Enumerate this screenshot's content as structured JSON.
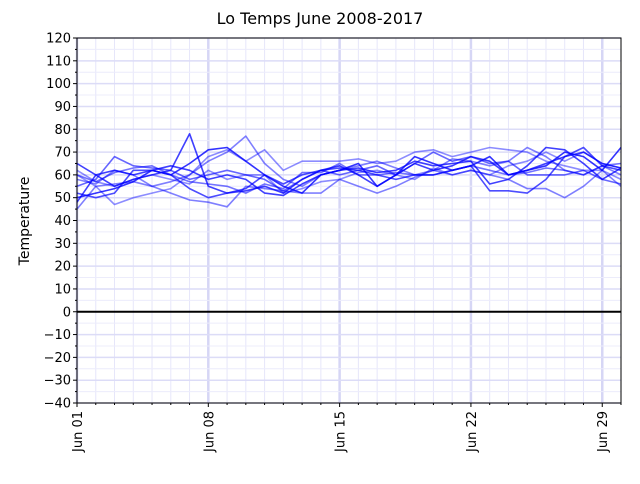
{
  "chart_data": {
    "type": "line",
    "title": "Lo Temps June 2008-2017",
    "xlabel": "",
    "ylabel": "Temperature",
    "x": [
      1,
      2,
      3,
      4,
      5,
      6,
      7,
      8,
      9,
      10,
      11,
      12,
      13,
      14,
      15,
      16,
      17,
      18,
      19,
      20,
      21,
      22,
      23,
      24,
      25,
      26,
      27,
      28,
      29,
      30
    ],
    "xlim": [
      1,
      30
    ],
    "ylim": [
      -40,
      120
    ],
    "xticks": [
      {
        "day": 1,
        "label": "Jun 01"
      },
      {
        "day": 8,
        "label": "Jun 08"
      },
      {
        "day": 15,
        "label": "Jun 15"
      },
      {
        "day": 22,
        "label": "Jun 22"
      },
      {
        "day": 29,
        "label": "Jun 29"
      }
    ],
    "yticks": [
      "-40",
      "-30",
      "-20",
      "-10",
      "0",
      "10",
      "20",
      "30",
      "40",
      "50",
      "60",
      "70",
      "80",
      "90",
      "100",
      "110",
      "120"
    ],
    "grid": true,
    "reference_line": 0,
    "line_color": "#0000ff",
    "series": [
      {
        "opacity": 0.75,
        "values": [
          65,
          60,
          55,
          58,
          60,
          62,
          78,
          55,
          52,
          53,
          55,
          52,
          58,
          62,
          64,
          60,
          55,
          60,
          65,
          62,
          64,
          68,
          66,
          60,
          62,
          65,
          68,
          70,
          65,
          63
        ]
      },
      {
        "opacity": 0.5,
        "values": [
          58,
          56,
          62,
          60,
          55,
          57,
          60,
          66,
          70,
          77,
          65,
          58,
          55,
          60,
          62,
          64,
          66,
          63,
          60,
          62,
          67,
          66,
          64,
          66,
          72,
          68,
          62,
          60,
          64,
          60
        ]
      },
      {
        "opacity": 0.45,
        "values": [
          60,
          55,
          47,
          50,
          52,
          54,
          60,
          68,
          71,
          66,
          71,
          62,
          66,
          66,
          66,
          67,
          65,
          66,
          70,
          71,
          68,
          70,
          72,
          71,
          70,
          66,
          64,
          62,
          62,
          58
        ]
      },
      {
        "opacity": 0.5,
        "values": [
          45,
          55,
          56,
          57,
          55,
          52,
          49,
          48,
          46,
          55,
          54,
          53,
          52,
          52,
          58,
          55,
          52,
          55,
          59,
          62,
          60,
          62,
          60,
          58,
          54,
          54,
          50,
          55,
          62,
          55
        ]
      },
      {
        "opacity": 0.8,
        "values": [
          50,
          52,
          54,
          57,
          62,
          60,
          65,
          71,
          72,
          66,
          60,
          55,
          52,
          60,
          62,
          65,
          55,
          60,
          68,
          65,
          62,
          64,
          68,
          60,
          62,
          64,
          70,
          68,
          62,
          72
        ]
      },
      {
        "opacity": 0.6,
        "values": [
          55,
          58,
          68,
          64,
          63,
          62,
          58,
          60,
          62,
          60,
          58,
          53,
          58,
          62,
          60,
          62,
          64,
          60,
          65,
          70,
          66,
          68,
          65,
          66,
          60,
          60,
          60,
          62,
          58,
          56
        ]
      },
      {
        "opacity": 0.7,
        "values": [
          52,
          50,
          52,
          62,
          62,
          60,
          54,
          50,
          52,
          54,
          60,
          56,
          60,
          62,
          63,
          62,
          60,
          58,
          60,
          60,
          62,
          64,
          53,
          53,
          52,
          58,
          68,
          72,
          64,
          62
        ]
      },
      {
        "opacity": 0.45,
        "values": [
          62,
          57,
          55,
          58,
          60,
          58,
          56,
          62,
          58,
          60,
          60,
          52,
          54,
          57,
          58,
          61,
          62,
          60,
          58,
          63,
          60,
          62,
          60,
          64,
          66,
          70,
          66,
          70,
          65,
          63
        ]
      },
      {
        "opacity": 0.75,
        "values": [
          48,
          60,
          62,
          60,
          62,
          64,
          62,
          58,
          60,
          58,
          52,
          51,
          56,
          60,
          62,
          63,
          61,
          62,
          66,
          64,
          65,
          66,
          56,
          58,
          64,
          72,
          71,
          65,
          58,
          63
        ]
      },
      {
        "opacity": 0.55,
        "values": [
          60,
          57,
          61,
          63,
          64,
          60,
          57,
          56,
          55,
          52,
          56,
          54,
          61,
          61,
          65,
          60,
          60,
          61,
          60,
          60,
          62,
          64,
          62,
          60,
          61,
          63,
          62,
          60,
          64,
          65
        ]
      }
    ]
  }
}
